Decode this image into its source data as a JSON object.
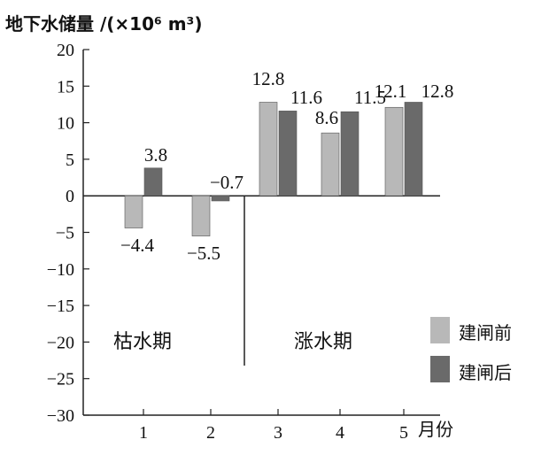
{
  "chart_data": {
    "type": "bar",
    "ylabel": "地下水储量 /(×10⁶ m³)",
    "xlabel": "月份",
    "categories": [
      "1",
      "2",
      "3",
      "4",
      "5"
    ],
    "ylim": [
      -30,
      20
    ],
    "yticks": [
      20,
      15,
      10,
      5,
      0,
      -5,
      -10,
      -15,
      -20,
      -25,
      -30
    ],
    "series": [
      {
        "name": "建闸前",
        "values": [
          -4.4,
          -5.5,
          12.8,
          8.6,
          12.1
        ],
        "color": "#b8b8b8"
      },
      {
        "name": "建闸后",
        "values": [
          3.8,
          -0.7,
          11.6,
          11.5,
          12.8
        ],
        "color": "#6a6a6a"
      }
    ],
    "data_labels": [
      {
        "text": "3.8"
      },
      {
        "text": "−0.7"
      },
      {
        "text": "12.8"
      },
      {
        "text": "11.6"
      },
      {
        "text": "8.6"
      },
      {
        "text": "11.5"
      },
      {
        "text": "12.1"
      },
      {
        "text": "12.8"
      },
      {
        "text": "−4.4"
      },
      {
        "text": "−5.5"
      }
    ],
    "regions": [
      "枯水期",
      "涨水期"
    ],
    "legend_position": "bottom-right",
    "grid": false
  }
}
